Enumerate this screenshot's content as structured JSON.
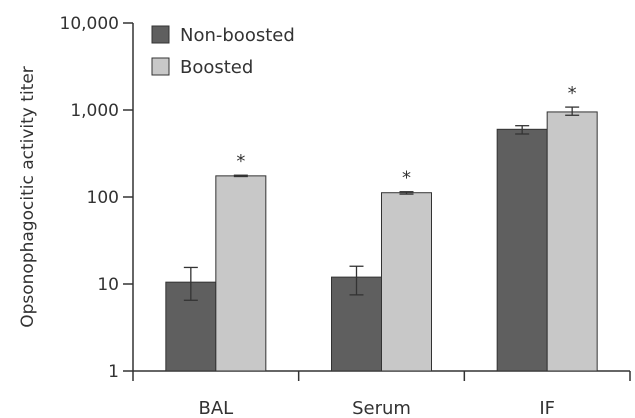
{
  "chart_data": {
    "type": "bar",
    "title": "",
    "xlabel": "",
    "ylabel": "Opsonophagocitic activity titer",
    "y_scale": "log",
    "ylim": [
      1,
      10000
    ],
    "y_ticks": [
      1,
      10,
      100,
      1000,
      10000
    ],
    "y_tick_labels": [
      "1",
      "10",
      "100",
      "1,000",
      "10,000"
    ],
    "categories": [
      "BAL",
      "Serum",
      "IF"
    ],
    "legend_position": "top-left",
    "grid": false,
    "series": [
      {
        "name": "Non-boosted",
        "color": "#5f5f5f",
        "values": [
          10.5,
          12,
          600
        ],
        "error_low": [
          6.5,
          7.5,
          530
        ],
        "error_high": [
          15.5,
          16,
          660
        ]
      },
      {
        "name": "Boosted",
        "color": "#c8c8c8",
        "values": [
          175,
          112,
          950
        ],
        "error_low": [
          172,
          108,
          870
        ],
        "error_high": [
          178,
          115,
          1080
        ]
      }
    ],
    "annotations": [
      {
        "category": "BAL",
        "series": "Boosted",
        "text": "*"
      },
      {
        "category": "Serum",
        "series": "Boosted",
        "text": "*"
      },
      {
        "category": "IF",
        "series": "Boosted",
        "text": "*"
      }
    ]
  }
}
